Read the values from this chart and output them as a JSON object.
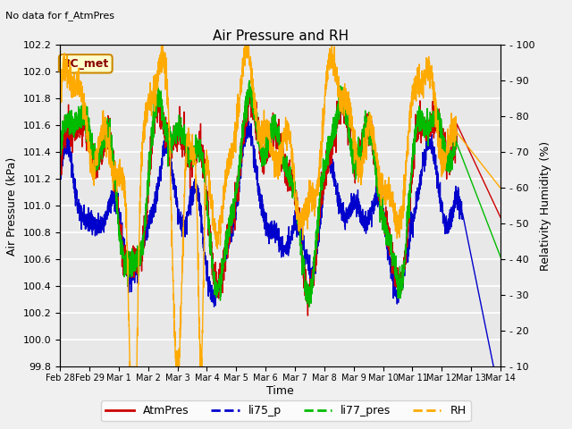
{
  "title": "Air Pressure and RH",
  "top_left_text": "No data for f_AtmPres",
  "annotation_box": "BC_met",
  "xlabel": "Time",
  "ylabel_left": "Air Pressure (kPa)",
  "ylabel_right": "Relativity Humidity (%)",
  "ylim_left": [
    99.8,
    102.2
  ],
  "ylim_right": [
    10,
    100
  ],
  "bg_color": "#f0f0f0",
  "plot_bg_color": "#e8e8e8",
  "series_colors": {
    "AtmPres": "#cc0000",
    "li75_p": "#0000cc",
    "li77_pres": "#00bb00",
    "RH": "#ffaa00"
  },
  "x_tick_labels": [
    "Feb 28",
    "Feb 29",
    "Mar 1",
    "Mar 2",
    "Mar 3",
    "Mar 4",
    "Mar 5",
    "Mar 6",
    "Mar 7",
    "Mar 8",
    "Mar 9",
    "Mar 10",
    "Mar 11",
    "Mar 12",
    "Mar 13",
    "Mar 14"
  ],
  "yticks_left": [
    99.8,
    100.0,
    100.2,
    100.4,
    100.6,
    100.8,
    101.0,
    101.2,
    101.4,
    101.6,
    101.8,
    102.0,
    102.2
  ],
  "yticks_right": [
    10,
    20,
    30,
    40,
    50,
    60,
    70,
    80,
    90,
    100
  ],
  "figsize": [
    6.4,
    4.8
  ],
  "dpi": 100
}
